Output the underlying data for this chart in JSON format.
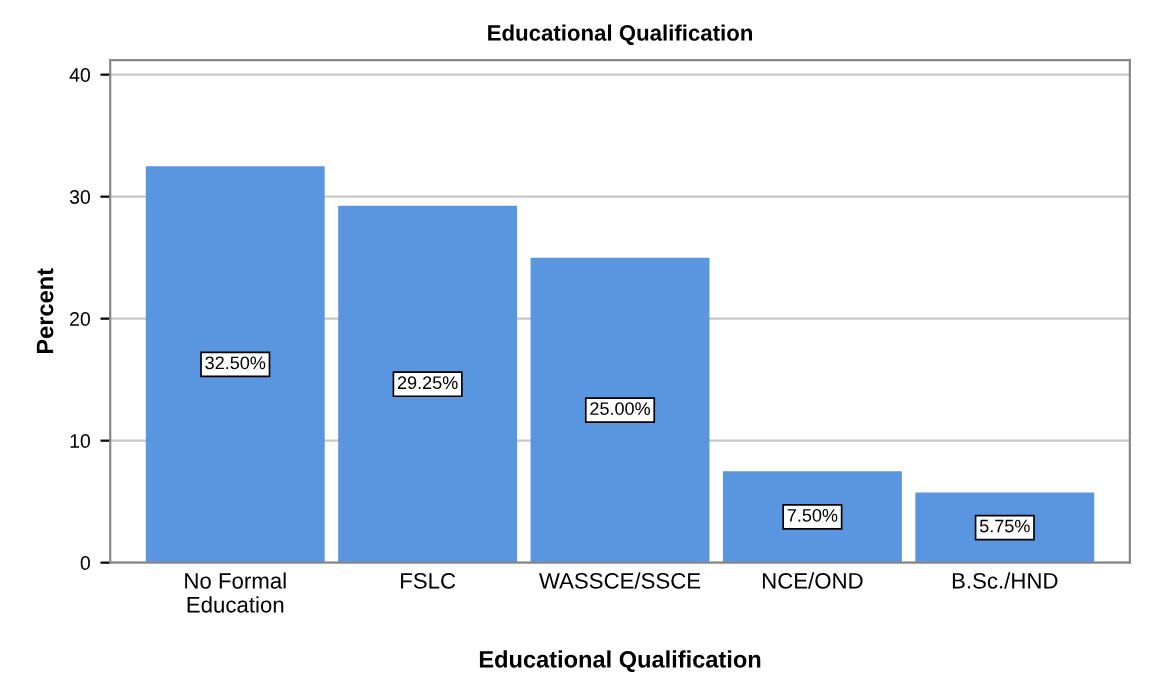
{
  "chart_data": {
    "type": "bar",
    "title": "Educational Qualification",
    "xlabel": "Educational Qualification",
    "ylabel": "Percent",
    "categories": [
      "No Formal\nEducation",
      "FSLC",
      "WASSCE/SSCE",
      "NCE/OND",
      "B.Sc./HND"
    ],
    "values": [
      32.5,
      29.25,
      25.0,
      7.5,
      5.75
    ],
    "value_labels": [
      "32.50%",
      "29.25%",
      "25.00%",
      "7.50%",
      "5.75%"
    ],
    "color": "#5a96e0",
    "ylim": [
      0,
      41.2
    ],
    "yticks": [
      0,
      10,
      20,
      30,
      40
    ],
    "grid": "y"
  }
}
